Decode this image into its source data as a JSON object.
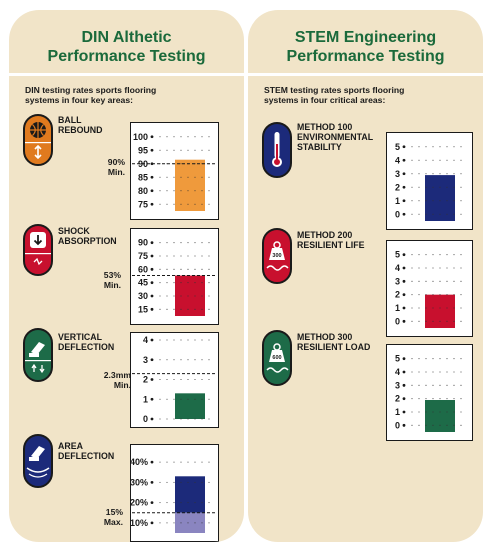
{
  "left_panel": {
    "title_line1": "DIN Althetic",
    "title_line2": "Performance Testing",
    "intro_line1": "DIN testing rates sports flooring",
    "intro_line2": "systems in four key areas:"
  },
  "right_panel": {
    "title_line1": "STEM Engineering",
    "title_line2": "Performance Testing",
    "intro_line1": "STEM testing rates sports flooring",
    "intro_line2": "systems in four critical areas:"
  },
  "colors": {
    "panel_bg": "#f1e4c8",
    "title_green": "#1b6a3b",
    "orange": "#e07a1e",
    "orange_bar": "#ef9a3c",
    "red": "#c8102e",
    "green": "#1d6b48",
    "navy": "#1c2a7a",
    "lavender": "#8a85c0"
  },
  "chart_data": [
    {
      "type": "bar",
      "panel": "DIN",
      "label_line1": "BALL",
      "label_line2": "REBOUND",
      "icon": "basketball-icon",
      "criterion_line1": "90%",
      "criterion_line2": "Min.",
      "tick_labels": [
        "100",
        "95",
        "90",
        "85",
        "80",
        "75"
      ],
      "ylim": [
        72.5,
        102.5
      ],
      "criterion_value": 90,
      "value": 91.5,
      "bar_color": "#ef9a3c"
    },
    {
      "type": "bar",
      "panel": "DIN",
      "label_line1": "SHOCK",
      "label_line2": "ABSORPTION",
      "icon": "shock-arrow-icon",
      "criterion_line1": "53%",
      "criterion_line2": "Min.",
      "tick_labels": [
        "90",
        "75",
        "60",
        "45",
        "30",
        "15"
      ],
      "ylim": [
        7.5,
        97.5
      ],
      "criterion_value": 53,
      "value": 53,
      "bar_color": "#c8102e"
    },
    {
      "type": "bar",
      "panel": "DIN",
      "label_line1": "VERTICAL",
      "label_line2": "DEFLECTION",
      "icon": "vertical-deflection-icon",
      "criterion_line1": "2.3mm",
      "criterion_line2": "Min.",
      "tick_labels": [
        "4",
        "3",
        "2",
        "1",
        "0"
      ],
      "ylim": [
        0,
        4
      ],
      "criterion_value": 2.3,
      "value": 1.3,
      "bar_color": "#1d6b48"
    },
    {
      "type": "bar",
      "panel": "DIN",
      "label_line1": "AREA",
      "label_line2": "DEFLECTION",
      "icon": "area-deflection-icon",
      "criterion_line1": "15%",
      "criterion_line2": "Max.",
      "tick_labels": [
        "40%",
        "30%",
        "20%",
        "10%"
      ],
      "ylim": [
        5,
        45
      ],
      "criterion_value": 15,
      "value": 33,
      "bar_color": "#1c2a7a",
      "lower_band_color": "#8a85c0"
    },
    {
      "type": "bar",
      "panel": "STEM",
      "label_line1": "METHOD 100",
      "label_line2": "ENVIRONMENTAL",
      "label_line3": "STABILITY",
      "icon": "thermometer-icon",
      "tick_labels": [
        "5",
        "4",
        "3",
        "2",
        "1",
        "0"
      ],
      "ylim": [
        -0.5,
        5.5
      ],
      "value": 2.9,
      "bar_color": "#1c2a7a"
    },
    {
      "type": "bar",
      "panel": "STEM",
      "label_line1": "METHOD 200",
      "label_line2": "RESILIENT LIFE",
      "icon": "weight-300-icon",
      "weight_label": "300",
      "tick_labels": [
        "5",
        "4",
        "3",
        "2",
        "1",
        "0"
      ],
      "ylim": [
        -0.5,
        5.5
      ],
      "value": 2.0,
      "bar_color": "#c8102e"
    },
    {
      "type": "bar",
      "panel": "STEM",
      "label_line1": "METHOD 300",
      "label_line2": "RESILIENT LOAD",
      "icon": "weight-600-icon",
      "weight_label": "600",
      "tick_labels": [
        "5",
        "4",
        "3",
        "2",
        "1",
        "0"
      ],
      "ylim": [
        -0.5,
        5.5
      ],
      "value": 1.9,
      "bar_color": "#1d6b48"
    }
  ]
}
